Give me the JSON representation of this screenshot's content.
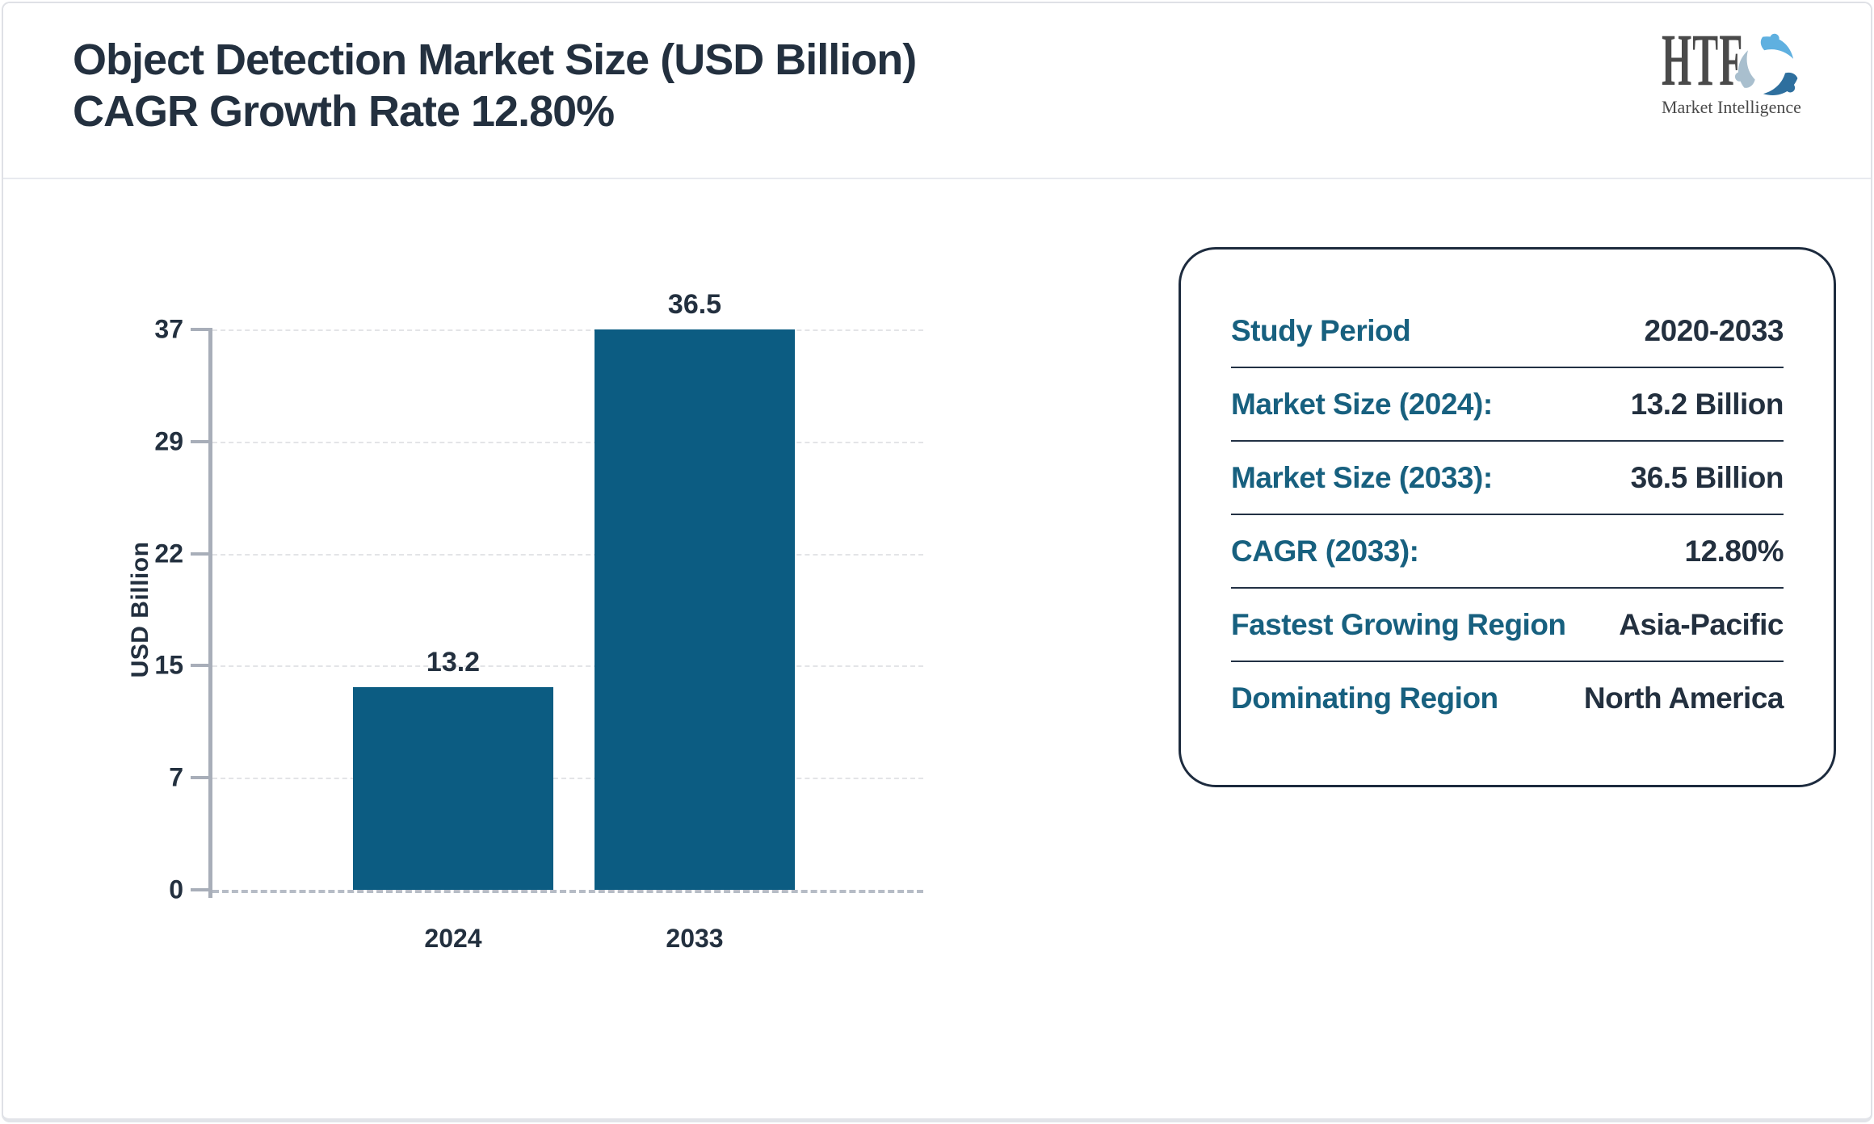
{
  "header": {
    "title_line1": "Object Detection Market Size (USD Billion)",
    "title_line2": "CAGR Growth Rate 12.80%",
    "logo": {
      "name": "HTF",
      "tagline": "Market Intelligence",
      "colors": {
        "text": "#4a4a4a",
        "swirl_light_blue": "#5fb0e0",
        "swirl_steel_blue": "#2e6f9e",
        "swirl_gray_blue": "#a9bfce"
      }
    }
  },
  "chart_data": {
    "type": "bar",
    "title": "Object Detection Market Size (USD Billion) CAGR Growth Rate 12.80%",
    "categories": [
      "2024",
      "2033"
    ],
    "values": [
      13.2,
      36.5
    ],
    "bar_labels": [
      "13.2",
      "36.5"
    ],
    "xlabel": "",
    "ylabel": "USD Billion",
    "ylim": [
      0,
      36.5
    ],
    "ytick_labels": [
      "0",
      "7",
      "15",
      "22",
      "29",
      "37"
    ],
    "grid": "horizontal-dashed",
    "legend": "none",
    "bar_color": "#0c5c82",
    "axis_color": "#a8aeb9",
    "text_color": "#23303f"
  },
  "info_panel": {
    "label_color": "#17607f",
    "value_color": "#23303f",
    "rows": [
      {
        "label": "Study Period",
        "value": "2020-2033"
      },
      {
        "label": "Market Size (2024):",
        "value": "13.2 Billion"
      },
      {
        "label": "Market Size (2033):",
        "value": "36.5 Billion"
      },
      {
        "label": "CAGR (2033):",
        "value": "12.80%"
      },
      {
        "label": "Fastest Growing Region",
        "value": "Asia-Pacific"
      },
      {
        "label": "Dominating Region",
        "value": "North America"
      }
    ]
  }
}
